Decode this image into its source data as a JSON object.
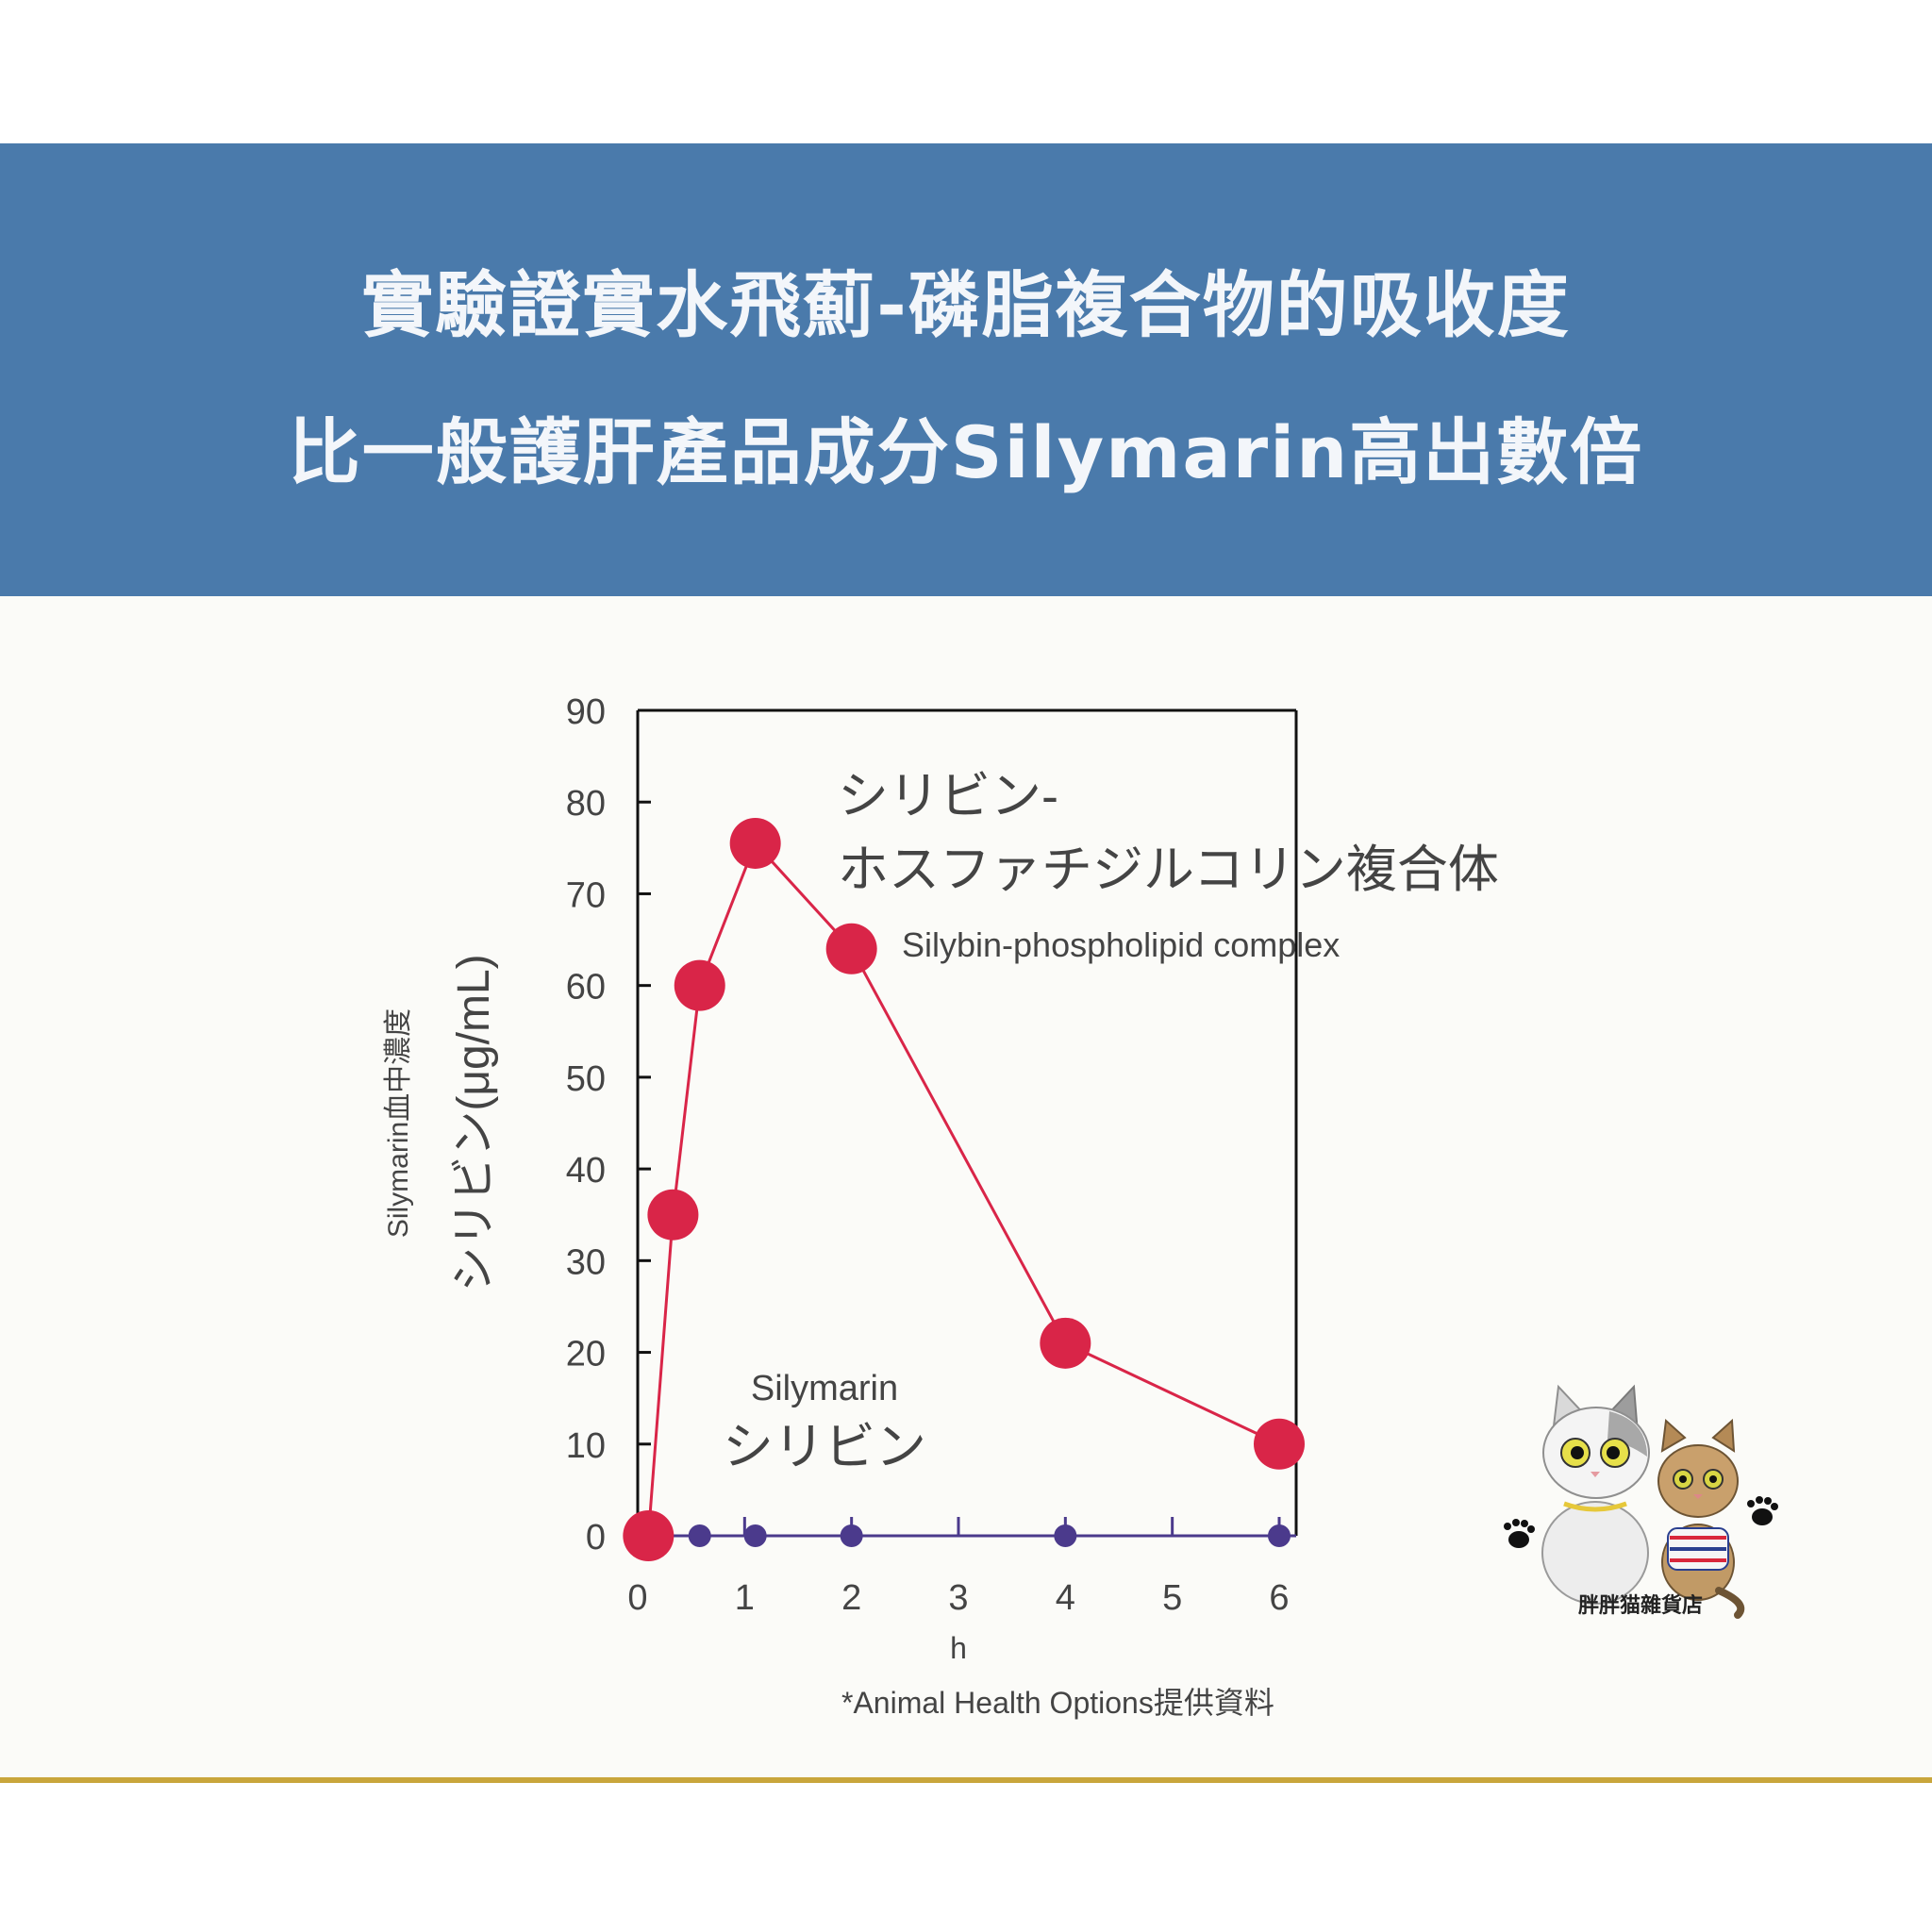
{
  "banner": {
    "line1": "實驗證實水飛薊-磷脂複合物的吸收度",
    "line2": "比一般護肝產品成分Silymarin高出數倍"
  },
  "store": {
    "name": "胖胖猫雜貨店"
  },
  "colors": {
    "banner": "#4a7aab",
    "complex_series": "#d92548",
    "silymarin_series": "#4b3a8c",
    "accent_rule": "#c9a63c"
  },
  "chart_data": {
    "type": "line",
    "ylabel_line1": "Silymarin血中濃度",
    "ylabel_line2": "シリビン(μg/mL)",
    "xlabel": "h",
    "xlim": [
      0,
      6
    ],
    "ylim": [
      0,
      90
    ],
    "x_ticks": [
      "0",
      "1",
      "2",
      "3",
      "4",
      "5",
      "6"
    ],
    "y_ticks": [
      "0",
      "10",
      "20",
      "30",
      "40",
      "50",
      "60",
      "70",
      "80",
      "90"
    ],
    "grid": false,
    "series": [
      {
        "label_lines": [
          "シリビン-",
          "ホスファチジルコリン複合体",
          "Silybin-phospholipid complex"
        ],
        "x": [
          0.1,
          0.33,
          0.58,
          1.1,
          2.0,
          4.0,
          6.0
        ],
        "y": [
          0,
          35,
          60,
          75.5,
          64,
          21,
          10
        ]
      },
      {
        "label_lines": [
          "Silymarin",
          "シリビン"
        ],
        "x": [
          0.1,
          0.58,
          1.1,
          2.0,
          4.0,
          6.0
        ],
        "y": [
          0,
          0,
          0,
          0,
          0,
          0
        ]
      }
    ],
    "source_note": "*Animal Health Options提供資料"
  }
}
